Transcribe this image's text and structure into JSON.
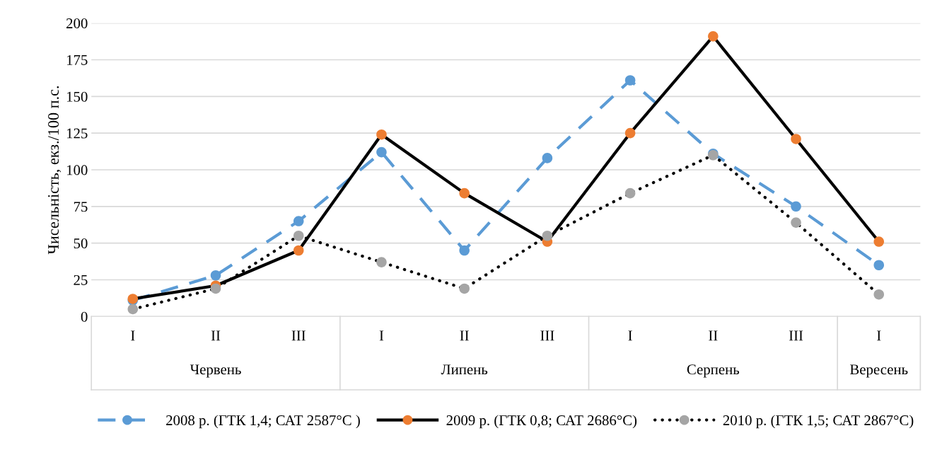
{
  "chart_data": {
    "type": "line",
    "ylabel": "Чисельність, екз./100 п.с.",
    "categories": [
      "I",
      "II",
      "III",
      "I",
      "II",
      "III",
      "I",
      "II",
      "III",
      "I"
    ],
    "annotations": [
      "Червень",
      "Липень",
      "Серпень",
      "Вересень"
    ],
    "series": [
      {
        "name": "2008 р. (ГТК 1,4; САТ 2587°С )",
        "color": "#5b9bd5",
        "line_style": "dashed",
        "values": [
          11,
          28,
          65,
          112,
          45,
          108,
          161,
          111,
          75,
          35
        ]
      },
      {
        "name": "2009 р. (ГТК 0,8; САТ 2686°С)",
        "color": "#000000",
        "colors": [
          "#ed7d31",
          "#ed7d31",
          "#ed7d31",
          "#ed7d31",
          "#ed7d31",
          "#ed7d31",
          "#ed7d31",
          "#ed7d31",
          "#ed7d31",
          "#ed7d31"
        ],
        "line_style": "solid",
        "values": [
          12,
          21,
          45,
          124,
          84,
          51,
          125,
          191,
          121,
          51
        ]
      },
      {
        "name": "2010 р. (ГТК 1,5; САТ 2867°С)",
        "color": "#000000",
        "colors": [
          "#a5a5a5",
          "#a5a5a5",
          "#a5a5a5",
          "#a5a5a5",
          "#a5a5a5",
          "#a5a5a5",
          "#a5a5a5",
          "#a5a5a5",
          "#a5a5a5",
          "#a5a5a5"
        ],
        "line_style": "dotted",
        "values": [
          5,
          19,
          55,
          37,
          19,
          55,
          84,
          110,
          64,
          15
        ]
      }
    ],
    "ylim": [
      0,
      200
    ],
    "yticks": [
      0,
      25,
      50,
      75,
      100,
      125,
      150,
      175,
      200
    ],
    "grid": "y",
    "legend": "bottom",
    "marker": "circle"
  }
}
